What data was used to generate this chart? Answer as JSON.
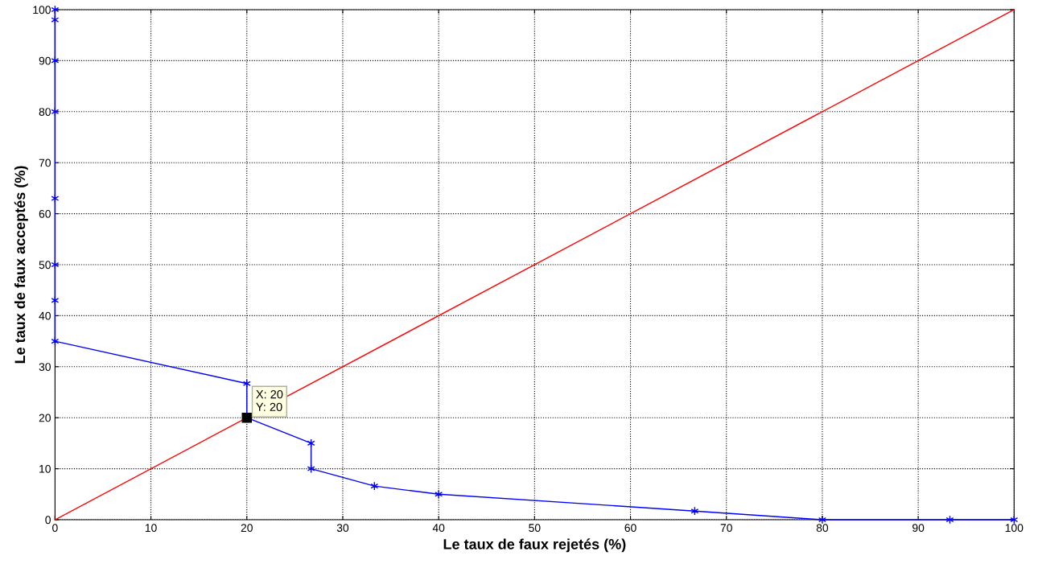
{
  "chart_data": {
    "type": "line",
    "xlabel": "Le taux de faux rejetés (%)",
    "ylabel": "Le taux de faux acceptés (%)",
    "series": [
      {
        "color": "#0000ff",
        "marker": "cross",
        "x": [
          0,
          0,
          0,
          0,
          0,
          0,
          0,
          0,
          20,
          20,
          26.7,
          26.7,
          33.3,
          40,
          66.7,
          80,
          93.3,
          100
        ],
        "values": [
          100,
          98,
          90,
          80,
          63,
          50,
          43,
          35,
          26.7,
          20,
          15,
          10,
          6.6,
          5,
          1.7,
          0,
          0,
          0
        ]
      },
      {
        "color": "#ff0000",
        "marker": "none",
        "x": [
          0,
          100
        ],
        "values": [
          0,
          100
        ]
      }
    ],
    "annotations": [
      {
        "text": "X: 20\nY: 20",
        "x": 20,
        "y": 20
      }
    ],
    "xlim": [
      0,
      100
    ],
    "ylim": [
      0,
      100
    ],
    "xticks": [
      0,
      10,
      20,
      30,
      40,
      50,
      60,
      70,
      80,
      90,
      100
    ],
    "yticks": [
      0,
      10,
      20,
      30,
      40,
      50,
      60,
      70,
      80,
      90,
      100
    ],
    "grid": true,
    "line_style": "solid"
  }
}
